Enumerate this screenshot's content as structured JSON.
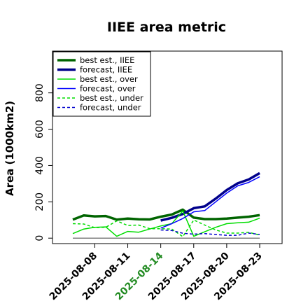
{
  "chart_data": {
    "type": "line",
    "title": "IIEE area metric",
    "ylabel": "Area (1000km2)",
    "xlabel": "",
    "ylim": [
      -30,
      1030
    ],
    "yticks": [
      0,
      200,
      400,
      600,
      800
    ],
    "x": [
      "2025-08-06",
      "2025-08-07",
      "2025-08-08",
      "2025-08-09",
      "2025-08-10",
      "2025-08-11",
      "2025-08-12",
      "2025-08-13",
      "2025-08-14",
      "2025-08-15",
      "2025-08-16",
      "2025-08-17",
      "2025-08-18",
      "2025-08-19",
      "2025-08-20",
      "2025-08-21",
      "2025-08-22",
      "2025-08-23"
    ],
    "xticks": [
      "2025-08-08",
      "2025-08-11",
      "2025-08-14",
      "2025-08-17",
      "2025-08-20",
      "2025-08-23"
    ],
    "highlight_tick": "2025-08-14",
    "highlight_color": "#228B22",
    "baseline": 0,
    "baseline_color": "#808080",
    "legend_position": "top-left",
    "series": [
      {
        "name": "best est., IIEE",
        "color": "#006400",
        "width": 3.5,
        "dash": "solid",
        "values": [
          102,
          125,
          120,
          122,
          102,
          108,
          104,
          103,
          118,
          130,
          157,
          113,
          105,
          105,
          108,
          113,
          118,
          127
        ]
      },
      {
        "name": "forecast, IIEE",
        "color": "#00008B",
        "width": 3.5,
        "dash": "solid",
        "values": [
          null,
          null,
          null,
          null,
          null,
          null,
          null,
          null,
          97,
          112,
          133,
          165,
          175,
          218,
          265,
          302,
          323,
          358
        ]
      },
      {
        "name": "best est., over",
        "color": "#00DD00",
        "width": 1.5,
        "dash": "solid",
        "values": [
          25,
          50,
          60,
          62,
          10,
          37,
          33,
          50,
          67,
          80,
          150,
          10,
          35,
          60,
          80,
          85,
          88,
          110
        ]
      },
      {
        "name": "forecast, over",
        "color": "#0000FF",
        "width": 1.5,
        "dash": "solid",
        "values": [
          null,
          null,
          null,
          null,
          null,
          null,
          null,
          null,
          55,
          80,
          108,
          145,
          152,
          200,
          248,
          288,
          307,
          338
        ]
      },
      {
        "name": "best est., under",
        "color": "#00DD00",
        "width": 1.5,
        "dash": "dashed",
        "values": [
          80,
          78,
          58,
          60,
          95,
          70,
          72,
          52,
          52,
          50,
          8,
          100,
          72,
          45,
          28,
          28,
          32,
          17
        ]
      },
      {
        "name": "forecast, under",
        "color": "#0000CD",
        "width": 1.5,
        "dash": "dashed",
        "values": [
          null,
          null,
          null,
          null,
          null,
          null,
          null,
          null,
          45,
          42,
          27,
          22,
          25,
          20,
          16,
          16,
          28,
          20
        ]
      }
    ]
  }
}
